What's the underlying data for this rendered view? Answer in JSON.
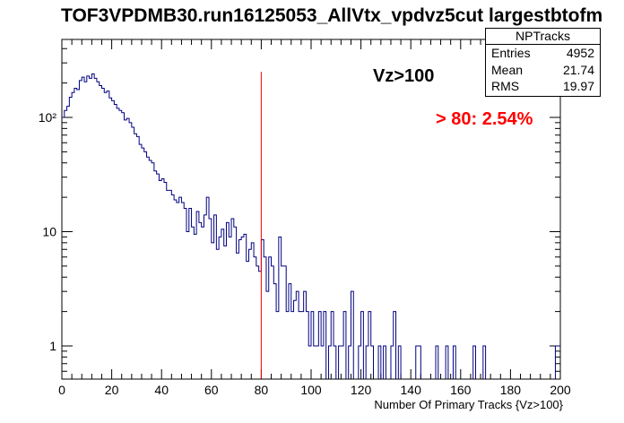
{
  "title": "TOF3VPDMB30.run16125053_AllVtx_vpdvz5cut largestbtofm",
  "stats_box": {
    "name": "NPTracks",
    "rows": [
      {
        "label": "Entries",
        "value": "4952"
      },
      {
        "label": "Mean",
        "value": "21.74"
      },
      {
        "label": "RMS",
        "value": "19.97"
      }
    ]
  },
  "annotations": {
    "vz_label": "Vz>100",
    "fraction_label": "> 80: 2.54%"
  },
  "colors": {
    "histogram": "#000080",
    "cut_line": "#ff0000",
    "fraction_text": "#ff0000"
  },
  "chart_data": {
    "type": "histogram",
    "title": "TOF3VPDMB30.run16125053_AllVtx_vpdvz5cut largestbtofm",
    "xlabel": "Number Of Primary Tracks {Vz>100}",
    "ylabel": "",
    "xlim": [
      0,
      200
    ],
    "ylim": [
      0.55,
      420
    ],
    "yscale": "log",
    "grid": false,
    "bin_width": 1,
    "x_ticks": [
      0,
      20,
      40,
      60,
      80,
      100,
      120,
      140,
      160,
      180,
      200
    ],
    "x_tick_labels": [
      "0",
      "20",
      "40",
      "60",
      "80",
      "100",
      "120",
      "140",
      "160",
      "180",
      "200"
    ],
    "y_ticks": [
      1,
      10,
      100
    ],
    "y_tick_labels": [
      "1",
      "10",
      "10²"
    ],
    "vertical_line_x": 80,
    "vertical_line_top": 250,
    "bins": [
      [
        1,
        100
      ],
      [
        2,
        115
      ],
      [
        3,
        125
      ],
      [
        4,
        150
      ],
      [
        5,
        165
      ],
      [
        6,
        180
      ],
      [
        7,
        175
      ],
      [
        8,
        210
      ],
      [
        9,
        225
      ],
      [
        10,
        205
      ],
      [
        11,
        230
      ],
      [
        12,
        220
      ],
      [
        13,
        240
      ],
      [
        14,
        220
      ],
      [
        15,
        205
      ],
      [
        16,
        190
      ],
      [
        17,
        180
      ],
      [
        18,
        165
      ],
      [
        19,
        170
      ],
      [
        20,
        148
      ],
      [
        21,
        140
      ],
      [
        22,
        130
      ],
      [
        23,
        120
      ],
      [
        24,
        115
      ],
      [
        25,
        110
      ],
      [
        26,
        95
      ],
      [
        27,
        98
      ],
      [
        28,
        90
      ],
      [
        29,
        82
      ],
      [
        30,
        72
      ],
      [
        31,
        68
      ],
      [
        32,
        58
      ],
      [
        33,
        54
      ],
      [
        34,
        50
      ],
      [
        35,
        45
      ],
      [
        36,
        42
      ],
      [
        37,
        40
      ],
      [
        38,
        34
      ],
      [
        39,
        32
      ],
      [
        40,
        28
      ],
      [
        41,
        29
      ],
      [
        42,
        27
      ],
      [
        43,
        23
      ],
      [
        44,
        23
      ],
      [
        45,
        21
      ],
      [
        46,
        19
      ],
      [
        47,
        18
      ],
      [
        48,
        20
      ],
      [
        49,
        18
      ],
      [
        50,
        16
      ],
      [
        51,
        10
      ],
      [
        52,
        16
      ],
      [
        53,
        11
      ],
      [
        54,
        9.5
      ],
      [
        55,
        15
      ],
      [
        56,
        12
      ],
      [
        57,
        11
      ],
      [
        58,
        14
      ],
      [
        59,
        20
      ],
      [
        60,
        13
      ],
      [
        61,
        8
      ],
      [
        62,
        14
      ],
      [
        63,
        7
      ],
      [
        64,
        9
      ],
      [
        65,
        10.5
      ],
      [
        66,
        7.5
      ],
      [
        67,
        12
      ],
      [
        68,
        9
      ],
      [
        69,
        13
      ],
      [
        70,
        11
      ],
      [
        71,
        6.5
      ],
      [
        72,
        8.5
      ],
      [
        73,
        9
      ],
      [
        74,
        9.5
      ],
      [
        75,
        5.5
      ],
      [
        76,
        7
      ],
      [
        77,
        8
      ],
      [
        78,
        6
      ],
      [
        79,
        5
      ],
      [
        80,
        4.5
      ],
      [
        81,
        8.5
      ],
      [
        82,
        6
      ],
      [
        83,
        3
      ],
      [
        84,
        6
      ],
      [
        85,
        5
      ],
      [
        86,
        3.5
      ],
      [
        87,
        2
      ],
      [
        88,
        9
      ],
      [
        89,
        5
      ],
      [
        90,
        5
      ],
      [
        91,
        2
      ],
      [
        92,
        3.5
      ],
      [
        93,
        2
      ],
      [
        94,
        2.5
      ],
      [
        95,
        3
      ],
      [
        96,
        2
      ],
      [
        97,
        2
      ],
      [
        98,
        3
      ],
      [
        99,
        2
      ],
      [
        100,
        1
      ],
      [
        101,
        2
      ],
      [
        102,
        1
      ],
      [
        103,
        1
      ],
      [
        104,
        2
      ],
      [
        105,
        1
      ],
      [
        106,
        2
      ],
      [
        108,
        1
      ],
      [
        109,
        2
      ],
      [
        110,
        1
      ],
      [
        112,
        1
      ],
      [
        113,
        1
      ],
      [
        114,
        2
      ],
      [
        116,
        1
      ],
      [
        117,
        3
      ],
      [
        120,
        1
      ],
      [
        121,
        2
      ],
      [
        123,
        1
      ],
      [
        124,
        2
      ],
      [
        125,
        1
      ],
      [
        128,
        1
      ],
      [
        130,
        1
      ],
      [
        133,
        1
      ],
      [
        134,
        2
      ],
      [
        136,
        1
      ],
      [
        143,
        1
      ],
      [
        144,
        1
      ],
      [
        151,
        1
      ],
      [
        155,
        1
      ],
      [
        158,
        1
      ],
      [
        166,
        1
      ],
      [
        170,
        1
      ],
      [
        199,
        1
      ],
      [
        200,
        1
      ]
    ]
  }
}
